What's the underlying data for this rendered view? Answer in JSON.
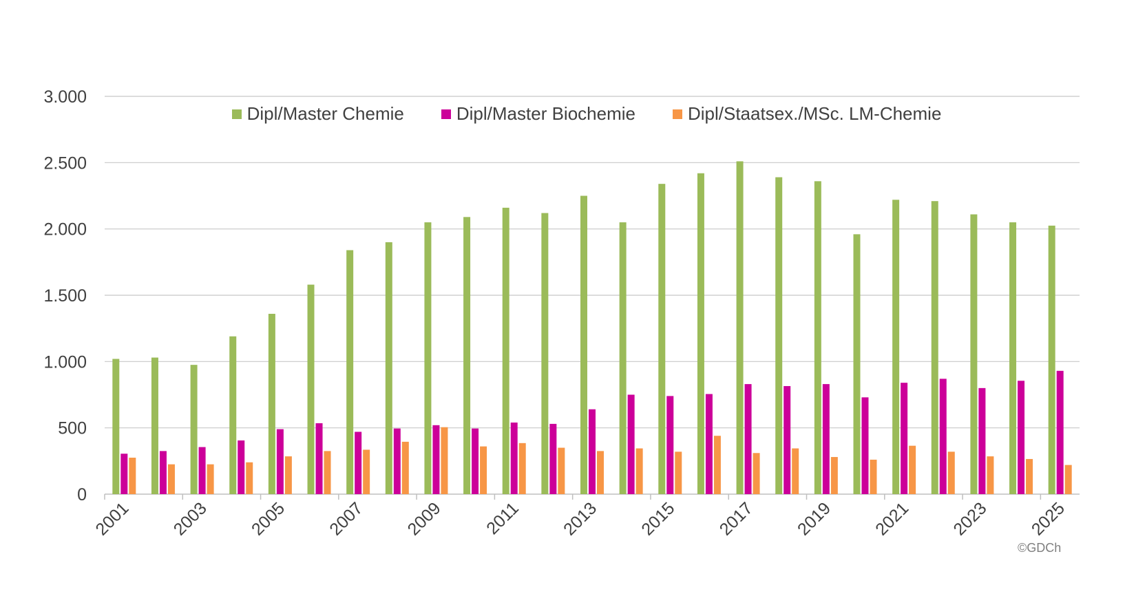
{
  "chart_data": {
    "type": "bar",
    "categories": [
      "2001",
      "2002",
      "2003",
      "2004",
      "2005",
      "2006",
      "2007",
      "2008",
      "2009",
      "2010",
      "2011",
      "2012",
      "2013",
      "2014",
      "2015",
      "2016",
      "2017",
      "2018",
      "2019",
      "2020",
      "2021",
      "2022",
      "2023",
      "2024",
      "2025"
    ],
    "x_tick_labels": [
      "2001",
      "2003",
      "2005",
      "2007",
      "2009",
      "2011",
      "2013",
      "2015",
      "2017",
      "2019",
      "2021",
      "2023",
      "2025"
    ],
    "series": [
      {
        "name": "Dipl/Master Chemie",
        "color": "#9bbb59",
        "values": [
          1020,
          1030,
          975,
          1190,
          1360,
          1580,
          1840,
          1900,
          2050,
          2090,
          2160,
          2120,
          2250,
          2050,
          2340,
          2420,
          2510,
          2390,
          2360,
          1960,
          2220,
          2210,
          2110,
          2050,
          2025
        ]
      },
      {
        "name": "Dipl/Master Biochemie",
        "color": "#cc0099",
        "values": [
          305,
          325,
          355,
          405,
          490,
          535,
          470,
          495,
          520,
          495,
          540,
          530,
          640,
          750,
          740,
          755,
          830,
          815,
          830,
          730,
          840,
          870,
          800,
          855,
          930
        ]
      },
      {
        "name": "Dipl/Staatsex./MSc. LM-Chemie",
        "color": "#f79646",
        "values": [
          275,
          225,
          225,
          240,
          285,
          325,
          335,
          395,
          505,
          360,
          385,
          350,
          325,
          345,
          320,
          440,
          310,
          345,
          280,
          260,
          365,
          320,
          285,
          265,
          220
        ]
      }
    ],
    "y_ticks": [
      0,
      500,
      1000,
      1500,
      2000,
      2500,
      3000
    ],
    "y_tick_labels": [
      "0",
      "500",
      "1.000",
      "1.500",
      "2.000",
      "2.500",
      "3.000"
    ],
    "ylim": [
      0,
      3000
    ],
    "grid": true,
    "legend_position": "top-center",
    "title": "",
    "xlabel": "",
    "ylabel": ""
  },
  "copyright": "©GDCh",
  "colors": {
    "gridline": "#c8c8c8",
    "axis": "#bfbfbf",
    "tick_text": "#404040"
  }
}
